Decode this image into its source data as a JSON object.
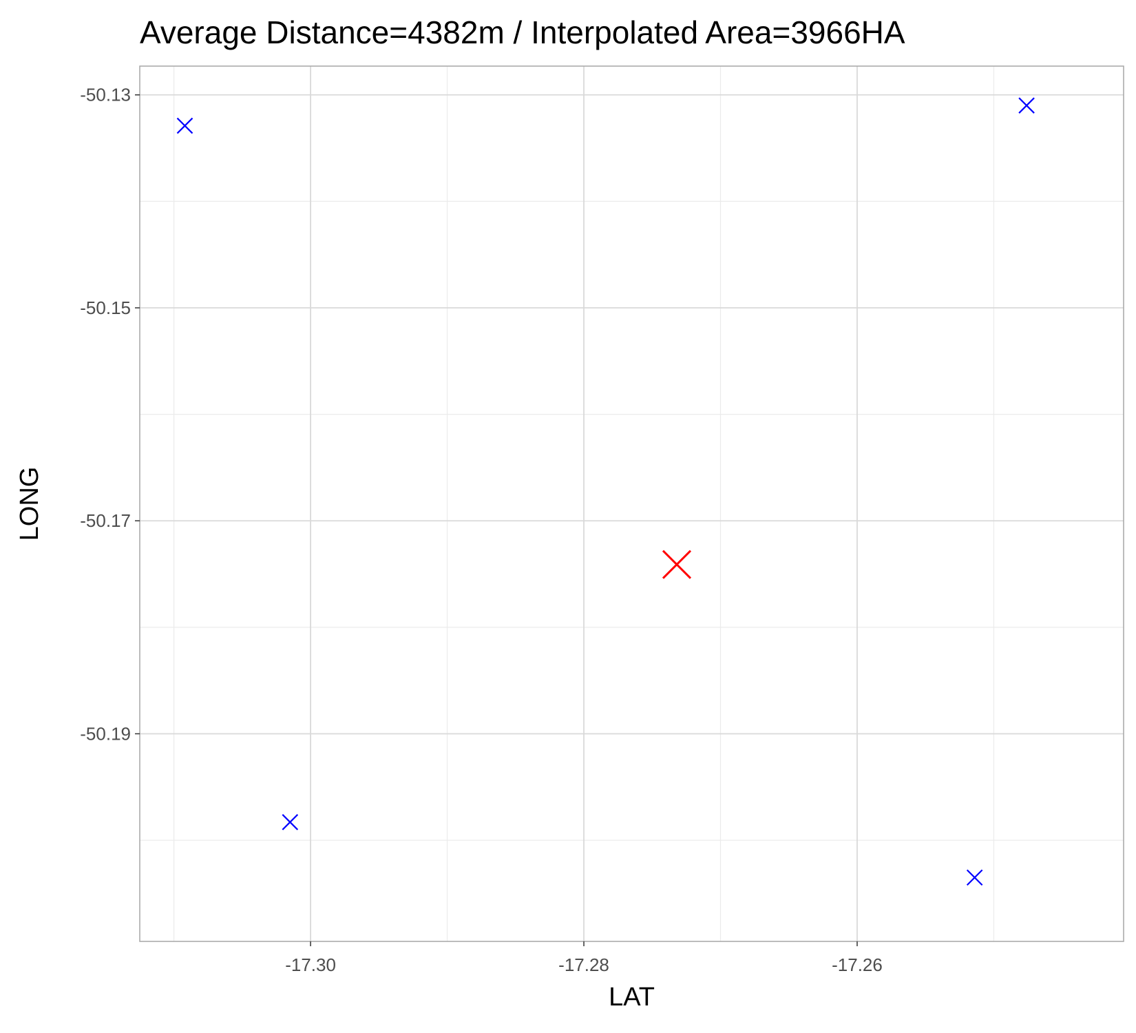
{
  "chart_data": {
    "type": "scatter",
    "title": "Average Distance=4382m / Interpolated Area=3966HA",
    "xlabel": "LAT",
    "ylabel": "LONG",
    "xlim": [
      -17.3125,
      -17.2405
    ],
    "ylim": [
      -50.2095,
      -50.1273
    ],
    "xticks": [
      {
        "value": -17.3,
        "label": "-17.30"
      },
      {
        "value": -17.28,
        "label": "-17.28"
      },
      {
        "value": -17.26,
        "label": "-17.26"
      }
    ],
    "yticks": [
      {
        "value": -50.13,
        "label": "-50.13"
      },
      {
        "value": -50.15,
        "label": "-50.15"
      },
      {
        "value": -50.17,
        "label": "-50.17"
      },
      {
        "value": -50.19,
        "label": "-50.19"
      }
    ],
    "x_minor_gridlines": [
      -17.31,
      -17.29,
      -17.27,
      -17.25
    ],
    "y_minor_gridlines": [
      -50.14,
      -50.16,
      -50.18,
      -50.2
    ],
    "grid": true,
    "legend": "none",
    "series": [
      {
        "marker": "x",
        "color": "#0000ff",
        "points": [
          {
            "x": -17.3092,
            "y": -50.1329
          },
          {
            "x": -17.3015,
            "y": -50.1983
          },
          {
            "x": -17.2514,
            "y": -50.2035
          },
          {
            "x": -17.2476,
            "y": -50.131
          }
        ]
      },
      {
        "marker": "x",
        "color": "#ff0000",
        "points": [
          {
            "x": -17.2732,
            "y": -50.1741
          }
        ]
      }
    ],
    "colors": {
      "panel_border": "#a6a6a6",
      "major_grid": "#d9d9d9",
      "minor_grid": "#ebebeb",
      "tick_text": "#4d4d4d",
      "title_text": "#000000"
    }
  }
}
